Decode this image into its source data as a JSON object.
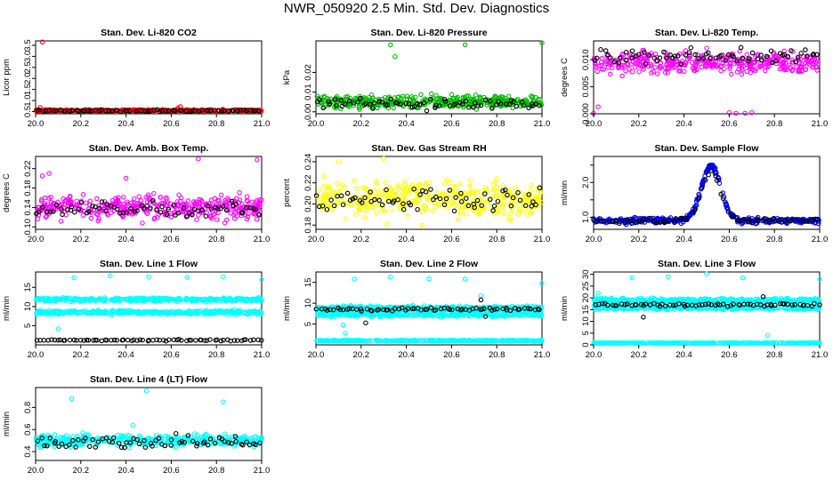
{
  "page_title": "NWR_050920  2.5 Min. Std. Dev. Diagnostics",
  "chart_data": [
    {
      "type": "scatter",
      "title": "Stan. Dev. Li-820 CO2",
      "xlabel": "",
      "ylabel": "Licor ppm",
      "xlim": [
        20.0,
        21.0
      ],
      "ylim": [
        0.4,
        3.7
      ],
      "xticks": [
        "20.0",
        "20.2",
        "20.4",
        "20.6",
        "20.8",
        "21.0"
      ],
      "yticks": [
        0.5,
        1.0,
        1.5,
        2.0,
        2.5,
        3.0,
        3.5
      ],
      "ytick_labels": [
        "0.5",
        "1.0",
        "1.5",
        "2.0",
        "2.5",
        "3.0",
        "3.5"
      ],
      "series": [
        {
          "name": "primary",
          "color": "#ff0000",
          "base": 0.55,
          "noise": 0.03,
          "outliers": [
            [
              20.03,
              3.65
            ],
            [
              20.02,
              0.68
            ],
            [
              20.64,
              0.72
            ],
            [
              20.63,
              0.66
            ]
          ]
        },
        {
          "name": "reference",
          "color": "#000000",
          "base": 0.54,
          "noise": 0.03
        }
      ]
    },
    {
      "type": "scatter",
      "title": "Stan. Dev. Li-820 Pressure",
      "xlabel": "",
      "ylabel": "kPa",
      "xlim": [
        20.0,
        21.0
      ],
      "ylim": [
        -0.001,
        0.036
      ],
      "xticks": [
        "20.0",
        "20.2",
        "20.4",
        "20.6",
        "20.8",
        "21.0"
      ],
      "yticks": [
        0.0,
        0.01,
        0.02
      ],
      "ytick_labels": [
        "0.00",
        "0.01",
        "0.02"
      ],
      "series": [
        {
          "name": "primary",
          "color": "#00bb00",
          "base": 0.005,
          "noise": 0.0025,
          "outliers": [
            [
              20.33,
              0.034
            ],
            [
              20.66,
              0.034
            ],
            [
              21.0,
              0.035
            ],
            [
              20.35,
              0.028
            ]
          ]
        },
        {
          "name": "reference",
          "color": "#000000",
          "base": 0.004,
          "noise": 0.002
        }
      ]
    },
    {
      "type": "scatter",
      "title": "Stan. Dev. Li-820 Temp.",
      "xlabel": "",
      "ylabel": "degrees C",
      "xlim": [
        20.0,
        21.0
      ],
      "ylim": [
        0.0,
        0.0135
      ],
      "xticks": [
        "20.0",
        "20.2",
        "20.4",
        "20.6",
        "20.8",
        "21.0"
      ],
      "yticks": [
        0.0,
        0.005,
        0.01
      ],
      "ytick_labels": [
        "0.000",
        "0.005",
        "0.010"
      ],
      "series": [
        {
          "name": "primary",
          "color": "#ff00ff",
          "base": 0.0095,
          "noise": 0.0015,
          "outliers": [
            [
              20.0,
              0.0001
            ],
            [
              20.02,
              0.0013
            ],
            [
              20.6,
              0.0002
            ],
            [
              20.63,
              0.0001
            ],
            [
              20.67,
              0.0001
            ],
            [
              20.7,
              0.0002
            ]
          ]
        },
        {
          "name": "reference",
          "color": "#000000",
          "base": 0.0105,
          "noise": 0.001
        }
      ]
    },
    {
      "type": "scatter",
      "title": "Stan. Dev. Amb. Box Temp.",
      "xlabel": "",
      "ylabel": "degrees C",
      "xlim": [
        20.0,
        21.0
      ],
      "ylim": [
        0.095,
        0.245
      ],
      "xticks": [
        "20.0",
        "20.2",
        "20.4",
        "20.6",
        "20.8",
        "21.0"
      ],
      "yticks": [
        0.1,
        0.14,
        0.18,
        0.22
      ],
      "ytick_labels": [
        "0.10",
        "0.14",
        "0.18",
        "0.22"
      ],
      "series": [
        {
          "name": "primary",
          "color": "#ff00ff",
          "base": 0.14,
          "noise": 0.018,
          "outliers": [
            [
              20.03,
              0.205
            ],
            [
              20.06,
              0.21
            ],
            [
              20.72,
              0.24
            ],
            [
              20.98,
              0.238
            ],
            [
              20.4,
              0.2
            ]
          ]
        },
        {
          "name": "reference",
          "color": "#000000",
          "base": 0.135,
          "noise": 0.012
        }
      ]
    },
    {
      "type": "scatter",
      "title": "Stan. Dev. Gas Stream RH",
      "xlabel": "",
      "ylabel": "percent",
      "xlim": [
        20.0,
        21.0
      ],
      "ylim": [
        0.176,
        0.245
      ],
      "xticks": [
        "20.0",
        "20.2",
        "20.4",
        "20.6",
        "20.8",
        "21.0"
      ],
      "yticks": [
        0.18,
        0.2,
        0.22,
        0.24
      ],
      "ytick_labels": [
        "0.18",
        "0.20",
        "0.22",
        "0.24"
      ],
      "series": [
        {
          "name": "primary",
          "color": "#ffff00",
          "base": 0.205,
          "noise": 0.013,
          "outliers": [
            [
              20.3,
              0.243
            ],
            [
              20.1,
              0.24
            ]
          ]
        },
        {
          "name": "reference",
          "color": "#000000",
          "base": 0.203,
          "noise": 0.011
        }
      ]
    },
    {
      "type": "scatter",
      "title": "Stan. Dev. Sample Flow",
      "xlabel": "",
      "ylabel": "ml/min",
      "xlim": [
        20.0,
        21.0
      ],
      "ylim": [
        0.65,
        2.75
      ],
      "xticks": [
        "20.0",
        "20.2",
        "20.4",
        "20.6",
        "20.8",
        "21.0"
      ],
      "yticks": [
        1.0,
        1.5,
        2.0,
        2.5
      ],
      "ytick_labels": [
        "1.0",
        "",
        "2.0",
        ""
      ],
      "series": [
        {
          "name": "primary",
          "color": "#0000ff",
          "base": 0.9,
          "noise": 0.06,
          "peak": {
            "x": 20.52,
            "height": 1.6,
            "width": 0.06
          }
        },
        {
          "name": "reference",
          "color": "#000000",
          "base": 0.9,
          "noise": 0.05,
          "peak": {
            "x": 20.52,
            "height": 1.4,
            "width": 0.06
          }
        }
      ]
    },
    {
      "type": "scatter",
      "title": "Stan. Dev. Line 1 Flow",
      "xlabel": "",
      "ylabel": "ml/min",
      "xlim": [
        20.0,
        21.0
      ],
      "ylim": [
        0.0,
        19.0
      ],
      "xticks": [
        "20.0",
        "20.2",
        "20.4",
        "20.6",
        "20.8",
        "21.0"
      ],
      "yticks": [
        5,
        10,
        15
      ],
      "ytick_labels": [
        "5",
        "10",
        "15"
      ],
      "series": [
        {
          "name": "primary",
          "color": "#00ffff",
          "base": 11.8,
          "noise": 0.35,
          "outliers": [
            [
              20.17,
              17.5
            ],
            [
              20.33,
              18.0
            ],
            [
              20.5,
              17.8
            ],
            [
              20.67,
              17.6
            ],
            [
              20.83,
              17.8
            ],
            [
              21.0,
              17.0
            ],
            [
              20.1,
              4.2
            ],
            [
              20.88,
              9.2
            ]
          ]
        },
        {
          "name": "secondary",
          "color": "#00ffff",
          "base": 8.5,
          "noise": 0.35
        },
        {
          "name": "reference",
          "color": "#000000",
          "base": 1.2,
          "noise": 0.15
        }
      ]
    },
    {
      "type": "scatter",
      "title": "Stan. Dev. Line 2 Flow",
      "xlabel": "",
      "ylabel": "ml/min",
      "xlim": [
        20.0,
        21.0
      ],
      "ylim": [
        0.0,
        17.5
      ],
      "xticks": [
        "20.0",
        "20.2",
        "20.4",
        "20.6",
        "20.8",
        "21.0"
      ],
      "yticks": [
        5,
        10,
        15
      ],
      "ytick_labels": [
        "5",
        "10",
        "15"
      ],
      "series": [
        {
          "name": "primary",
          "color": "#00ffff",
          "base": 8.8,
          "noise": 0.4,
          "outliers": [
            [
              20.17,
              15.8
            ],
            [
              20.33,
              16.3
            ],
            [
              20.5,
              15.9
            ],
            [
              20.66,
              15.8
            ],
            [
              21.0,
              14.8
            ],
            [
              20.73,
              11.8
            ],
            [
              20.12,
              4.8
            ],
            [
              20.13,
              2.8
            ]
          ]
        },
        {
          "name": "secondary",
          "color": "#00ffff",
          "base": 7.3,
          "noise": 0.4
        },
        {
          "name": "tertiary",
          "color": "#00ffff",
          "base": 1.0,
          "noise": 0.12
        },
        {
          "name": "reference",
          "color": "#000000",
          "base": 8.5,
          "noise": 0.3,
          "outliers": [
            [
              20.22,
              5.3
            ],
            [
              20.75,
              6.8
            ],
            [
              20.73,
              10.8
            ]
          ]
        }
      ]
    },
    {
      "type": "scatter",
      "title": "Stan. Dev. Line 3 Flow",
      "xlabel": "",
      "ylabel": "ml/min",
      "xlim": [
        20.0,
        21.0
      ],
      "ylim": [
        0.0,
        31.0
      ],
      "xticks": [
        "20.0",
        "20.2",
        "20.4",
        "20.6",
        "20.8",
        "21.0"
      ],
      "yticks": [
        0,
        5,
        10,
        15,
        20,
        25,
        30
      ],
      "ytick_labels": [
        "0",
        "5",
        "10",
        "15",
        "20",
        "25",
        "30"
      ],
      "series": [
        {
          "name": "primary",
          "color": "#00ffff",
          "base": 19.0,
          "noise": 0.6,
          "outliers": [
            [
              20.17,
              28.5
            ],
            [
              20.33,
              29.0
            ],
            [
              20.5,
              30.2
            ],
            [
              20.66,
              28.5
            ],
            [
              21.0,
              28.0
            ],
            [
              20.77,
              4.0
            ],
            [
              20.02,
              22.0
            ]
          ]
        },
        {
          "name": "secondary",
          "color": "#00ffff",
          "base": 15.8,
          "noise": 0.6
        },
        {
          "name": "tertiary",
          "color": "#00ffff",
          "base": 0.8,
          "noise": 0.12
        },
        {
          "name": "reference",
          "color": "#000000",
          "base": 17.0,
          "noise": 0.5,
          "outliers": [
            [
              20.22,
              11.8
            ],
            [
              20.75,
              20.5
            ]
          ]
        }
      ]
    },
    {
      "type": "scatter",
      "title": "Stan. Dev. Line 4 (LT) Flow",
      "xlabel": "",
      "ylabel": "ml/min",
      "xlim": [
        20.0,
        21.0
      ],
      "ylim": [
        0.32,
        0.98
      ],
      "xticks": [
        "20.0",
        "20.2",
        "20.4",
        "20.6",
        "20.8",
        "21.0"
      ],
      "yticks": [
        0.4,
        0.6,
        0.8
      ],
      "ytick_labels": [
        "0.4",
        "0.6",
        "0.8"
      ],
      "series": [
        {
          "name": "primary",
          "color": "#00ffff",
          "base": 0.5,
          "noise": 0.04,
          "outliers": [
            [
              20.49,
              0.95
            ],
            [
              20.16,
              0.88
            ],
            [
              20.83,
              0.85
            ],
            [
              20.43,
              0.64
            ]
          ]
        },
        {
          "name": "reference",
          "color": "#000000",
          "base": 0.48,
          "noise": 0.045
        }
      ]
    }
  ]
}
